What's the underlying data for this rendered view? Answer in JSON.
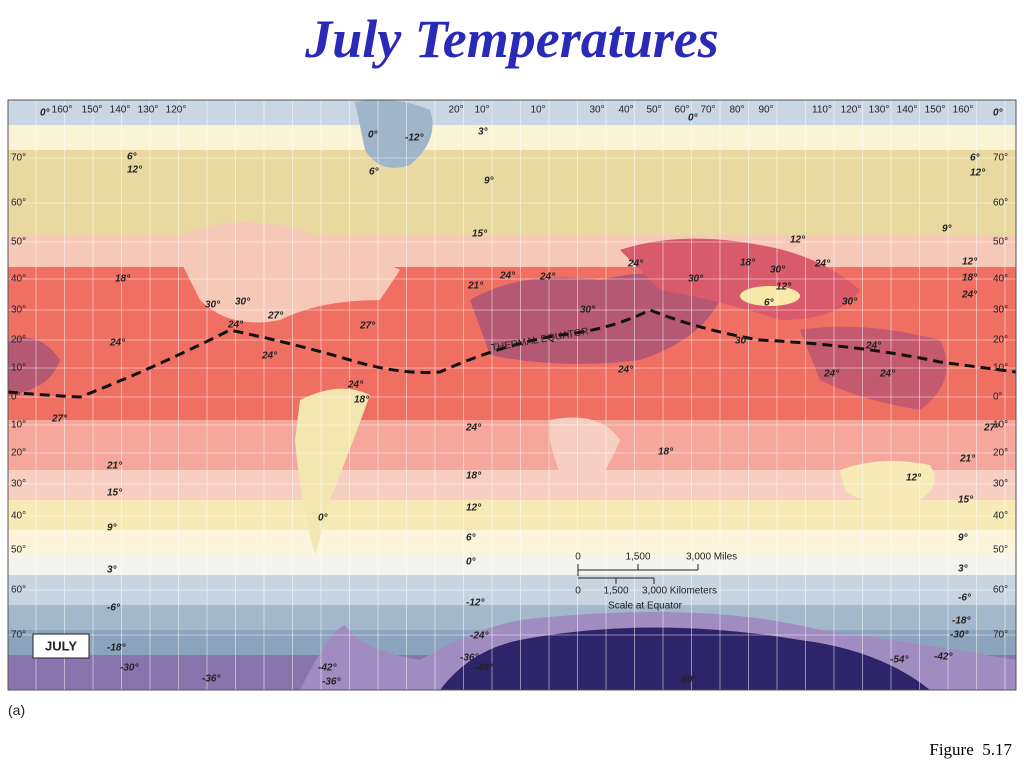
{
  "title": "July Temperatures",
  "panel_label": "(a)",
  "figure_label": "Figure  5.17",
  "map": {
    "month_label": "JULY",
    "equator_label": "THERMAL EQUATOR",
    "scale": {
      "miles": [
        "0",
        "1,500",
        "3,000 Miles"
      ],
      "km": [
        "0",
        "1,500",
        "3,000 Kilometers"
      ],
      "note": "Scale at Equator"
    },
    "latitude_labels_left": [
      "70°",
      "60°",
      "50°",
      "40°",
      "30°",
      "20°",
      "10°",
      "0°",
      "10°",
      "20°",
      "30°",
      "40°",
      "50°",
      "60°",
      "70°"
    ],
    "latitude_labels_right": [
      "70°",
      "60°",
      "50°",
      "40°",
      "30°",
      "20°",
      "10°",
      "0°",
      "10°",
      "20°",
      "30°",
      "40°",
      "50°",
      "60°",
      "70°"
    ],
    "longitude_labels": [
      "160°",
      "150°",
      "140°",
      "130°",
      "120°",
      "20°",
      "10°",
      "10°",
      "30°",
      "40°",
      "50°",
      "60°",
      "70°",
      "80°",
      "90°",
      "110°",
      "120°",
      "130°",
      "140°",
      "150°",
      "160°"
    ],
    "isotherm_labels": [
      "0°",
      "0°",
      "6°",
      "12°",
      "18°",
      "24°",
      "27°",
      "21°",
      "15°",
      "9°",
      "3°",
      "-6°",
      "-18°",
      "-30°",
      "-36°",
      "-42°",
      "-36°",
      "0°",
      "24°",
      "18°",
      "30°",
      "30°",
      "27°",
      "24°",
      "24°",
      "27°",
      "0°",
      "6°",
      "-12°",
      "3°",
      "9°",
      "15°",
      "21°",
      "24°",
      "24°",
      "24°",
      "30°",
      "30°",
      "18°",
      "30°",
      "12°",
      "6°",
      "24°",
      "30°",
      "12°",
      "12°",
      "18°",
      "24°",
      "9°",
      "6°",
      "12°",
      "0°",
      "30°",
      "24°",
      "24°",
      "24°",
      "24°",
      "27°",
      "21°",
      "15°",
      "9°",
      "3°",
      "-6°",
      "-18°",
      "-30°",
      "-42°",
      "-54°",
      "-60°",
      "-48°",
      "-36°",
      "24°",
      "18°",
      "12°",
      "6°",
      "0°",
      "-12°",
      "-24°",
      "18°",
      "12°"
    ]
  }
}
